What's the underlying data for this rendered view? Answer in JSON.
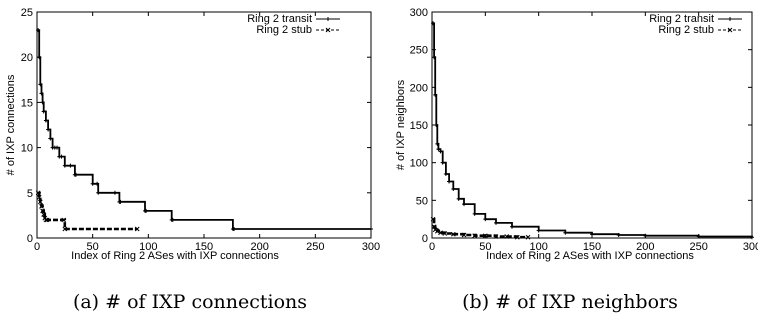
{
  "chart_data": [
    {
      "type": "line",
      "caption": "(a) # of IXP connections",
      "xlabel": "Index of Ring 2 ASes with IXP connections",
      "ylabel": "# of IXP connections",
      "xlim": [
        0,
        300
      ],
      "ylim": [
        0,
        25
      ],
      "xticks": [
        0,
        50,
        100,
        150,
        200,
        250,
        300
      ],
      "yticks": [
        0,
        5,
        10,
        15,
        20,
        25
      ],
      "legend_position": "top-right",
      "series": [
        {
          "name": "Ring 2 transit",
          "marker": "plus",
          "style": "solid",
          "x": [
            1,
            2,
            3,
            4,
            5,
            6,
            8,
            10,
            12,
            14,
            16,
            18,
            20,
            22,
            25,
            30,
            34,
            35,
            50,
            54,
            55,
            70,
            74,
            75,
            97,
            98,
            121,
            122,
            176,
            177,
            300
          ],
          "y": [
            23,
            20,
            17,
            16,
            15,
            14,
            13,
            12,
            11,
            10,
            10,
            10,
            9,
            9,
            8,
            8,
            7,
            7,
            6,
            6,
            5,
            5,
            4,
            4,
            3,
            3,
            2,
            2,
            1,
            1,
            1
          ]
        },
        {
          "name": "Ring 2 stub",
          "marker": "x",
          "style": "dashed",
          "x": [
            1,
            2,
            3,
            4,
            5,
            6,
            7,
            8,
            9,
            24,
            25,
            90
          ],
          "y": [
            5,
            4.5,
            4,
            3.5,
            3,
            2.6,
            2.2,
            2,
            2,
            2,
            1,
            1
          ]
        }
      ]
    },
    {
      "type": "line",
      "caption": "(b) # of IXP neighbors",
      "xlabel": "Index of Ring 2 ASes with IXP connections",
      "ylabel": "# of IXP neighbors",
      "xlim": [
        0,
        300
      ],
      "ylim": [
        0,
        300
      ],
      "xticks": [
        0,
        50,
        100,
        150,
        200,
        250,
        300
      ],
      "yticks": [
        0,
        50,
        100,
        150,
        200,
        250,
        300
      ],
      "legend_position": "top-right",
      "series": [
        {
          "name": "Ring 2 transit",
          "marker": "plus",
          "style": "solid",
          "x": [
            1,
            2,
            3,
            4,
            5,
            6,
            8,
            10,
            13,
            16,
            20,
            25,
            30,
            40,
            50,
            60,
            75,
            100,
            125,
            150,
            175,
            200,
            250,
            300
          ],
          "y": [
            285,
            240,
            190,
            150,
            125,
            118,
            115,
            100,
            85,
            75,
            65,
            52,
            45,
            32,
            25,
            20,
            15,
            10,
            7,
            5,
            4,
            3,
            2,
            1
          ]
        },
        {
          "name": "Ring 2 stub",
          "marker": "x",
          "style": "dashed",
          "x": [
            1,
            2,
            3,
            5,
            8,
            12,
            20,
            30,
            40,
            50,
            60,
            70,
            80,
            90
          ],
          "y": [
            25,
            15,
            11,
            9,
            7,
            6,
            5,
            4,
            3,
            3,
            2,
            2,
            1,
            1
          ]
        }
      ]
    }
  ]
}
